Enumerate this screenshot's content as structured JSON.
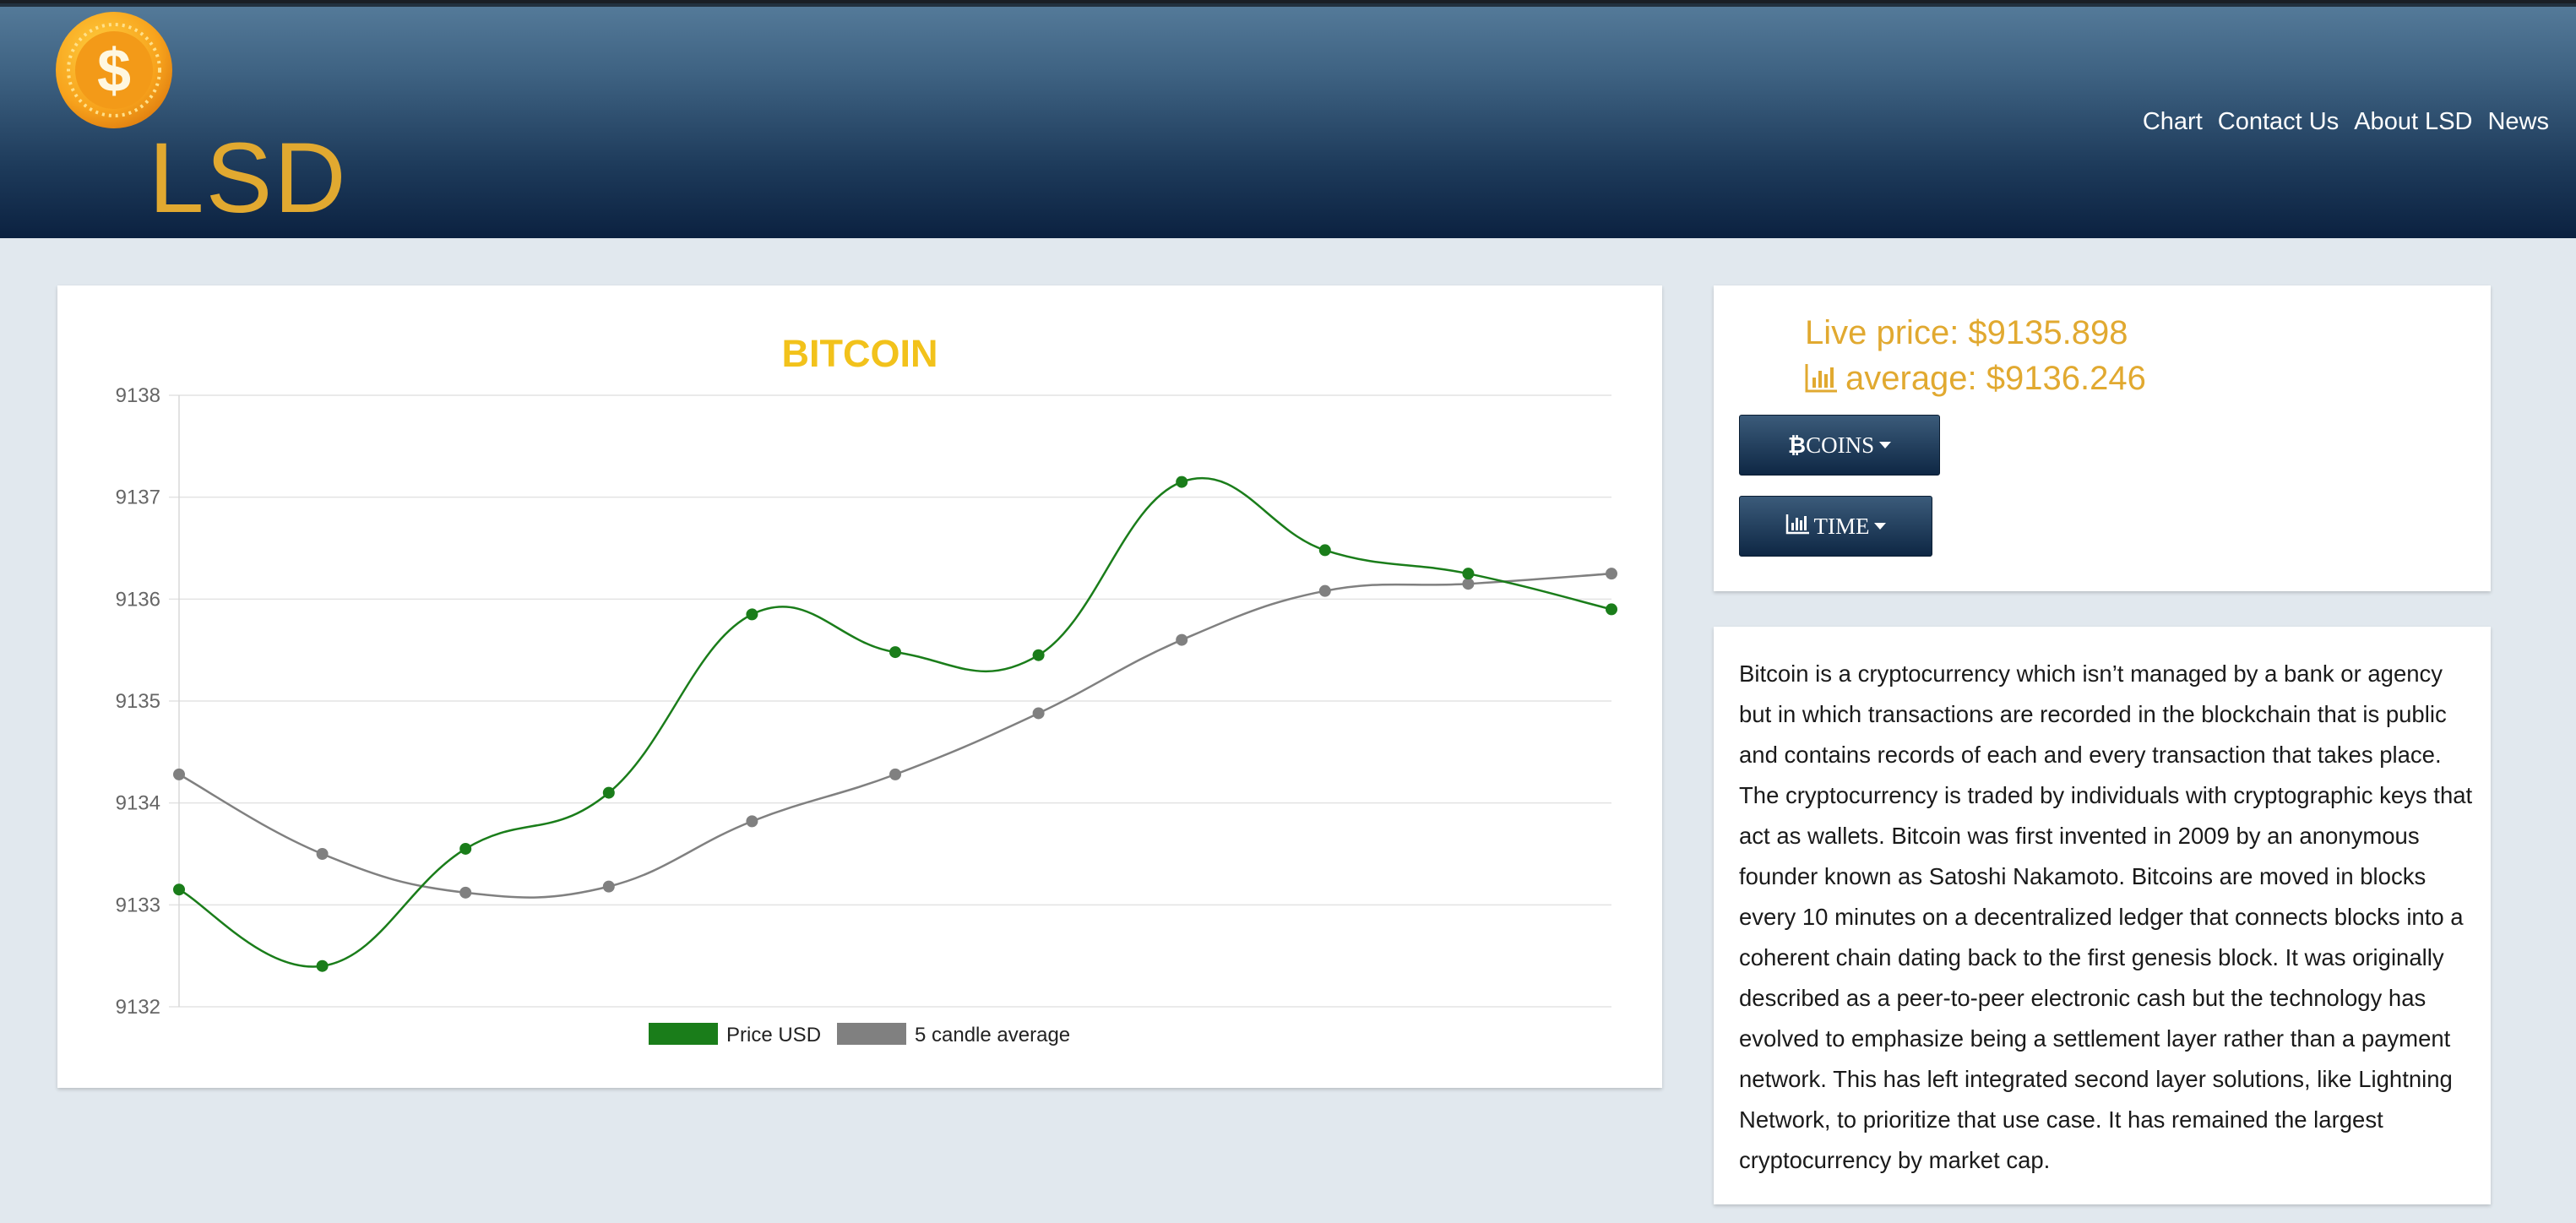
{
  "header": {
    "brand": "LSD",
    "logo_icon": "coin-dollar-icon",
    "nav": [
      "Chart",
      "Contact Us",
      "About LSD",
      "News"
    ]
  },
  "price_panel": {
    "live_price_label": "Live price: $9135.898",
    "average_label": "average: $9136.246",
    "average_icon": "bar-chart-icon",
    "coins_button": "COINS",
    "coins_icon": "bitcoin-icon",
    "time_button": "TIME",
    "time_icon": "bar-chart-icon"
  },
  "description": "Bitcoin is a cryptocurrency which isn’t managed by a bank or agency but in which transactions are recorded in the blockchain that is public and contains records of each and every transaction that takes place. The cryptocurrency is traded by individuals with cryptographic keys that act as wallets. Bitcoin was first invented in 2009 by an anonymous founder known as Satoshi Nakamoto. Bitcoins are moved in blocks every 10 minutes on a decentralized ledger that connects blocks into a coherent chain dating back to the first genesis block. It was originally described as a peer-to-peer electronic cash but the technology has evolved to emphasize being a settlement layer rather than a payment network. This has left integrated second layer solutions, like Lightning Network, to prioritize that use case. It has remained the largest cryptocurrency by market cap.",
  "colors": {
    "accent": "#e1a930",
    "title": "#f2c21b",
    "price_series": "#1a7d1a",
    "average_series": "#808080",
    "header_dark": "#0b2140"
  },
  "chart_data": {
    "type": "line",
    "title": "BITCOIN",
    "ylim": [
      9132,
      9138
    ],
    "yticks": [
      9132,
      9133,
      9134,
      9135,
      9136,
      9137,
      9138
    ],
    "grid": true,
    "legend_position": "bottom",
    "series": [
      {
        "name": "Price USD",
        "color": "#1a7d1a",
        "values": [
          9133.15,
          9132.4,
          9133.55,
          9134.1,
          9135.85,
          9135.48,
          9135.45,
          9137.15,
          9136.48,
          9136.25,
          9135.9
        ]
      },
      {
        "name": "5 candle average",
        "color": "#808080",
        "values": [
          9134.28,
          9133.5,
          9133.12,
          9133.18,
          9133.82,
          9134.28,
          9134.88,
          9135.6,
          9136.08,
          9136.15,
          9136.25
        ]
      }
    ]
  }
}
